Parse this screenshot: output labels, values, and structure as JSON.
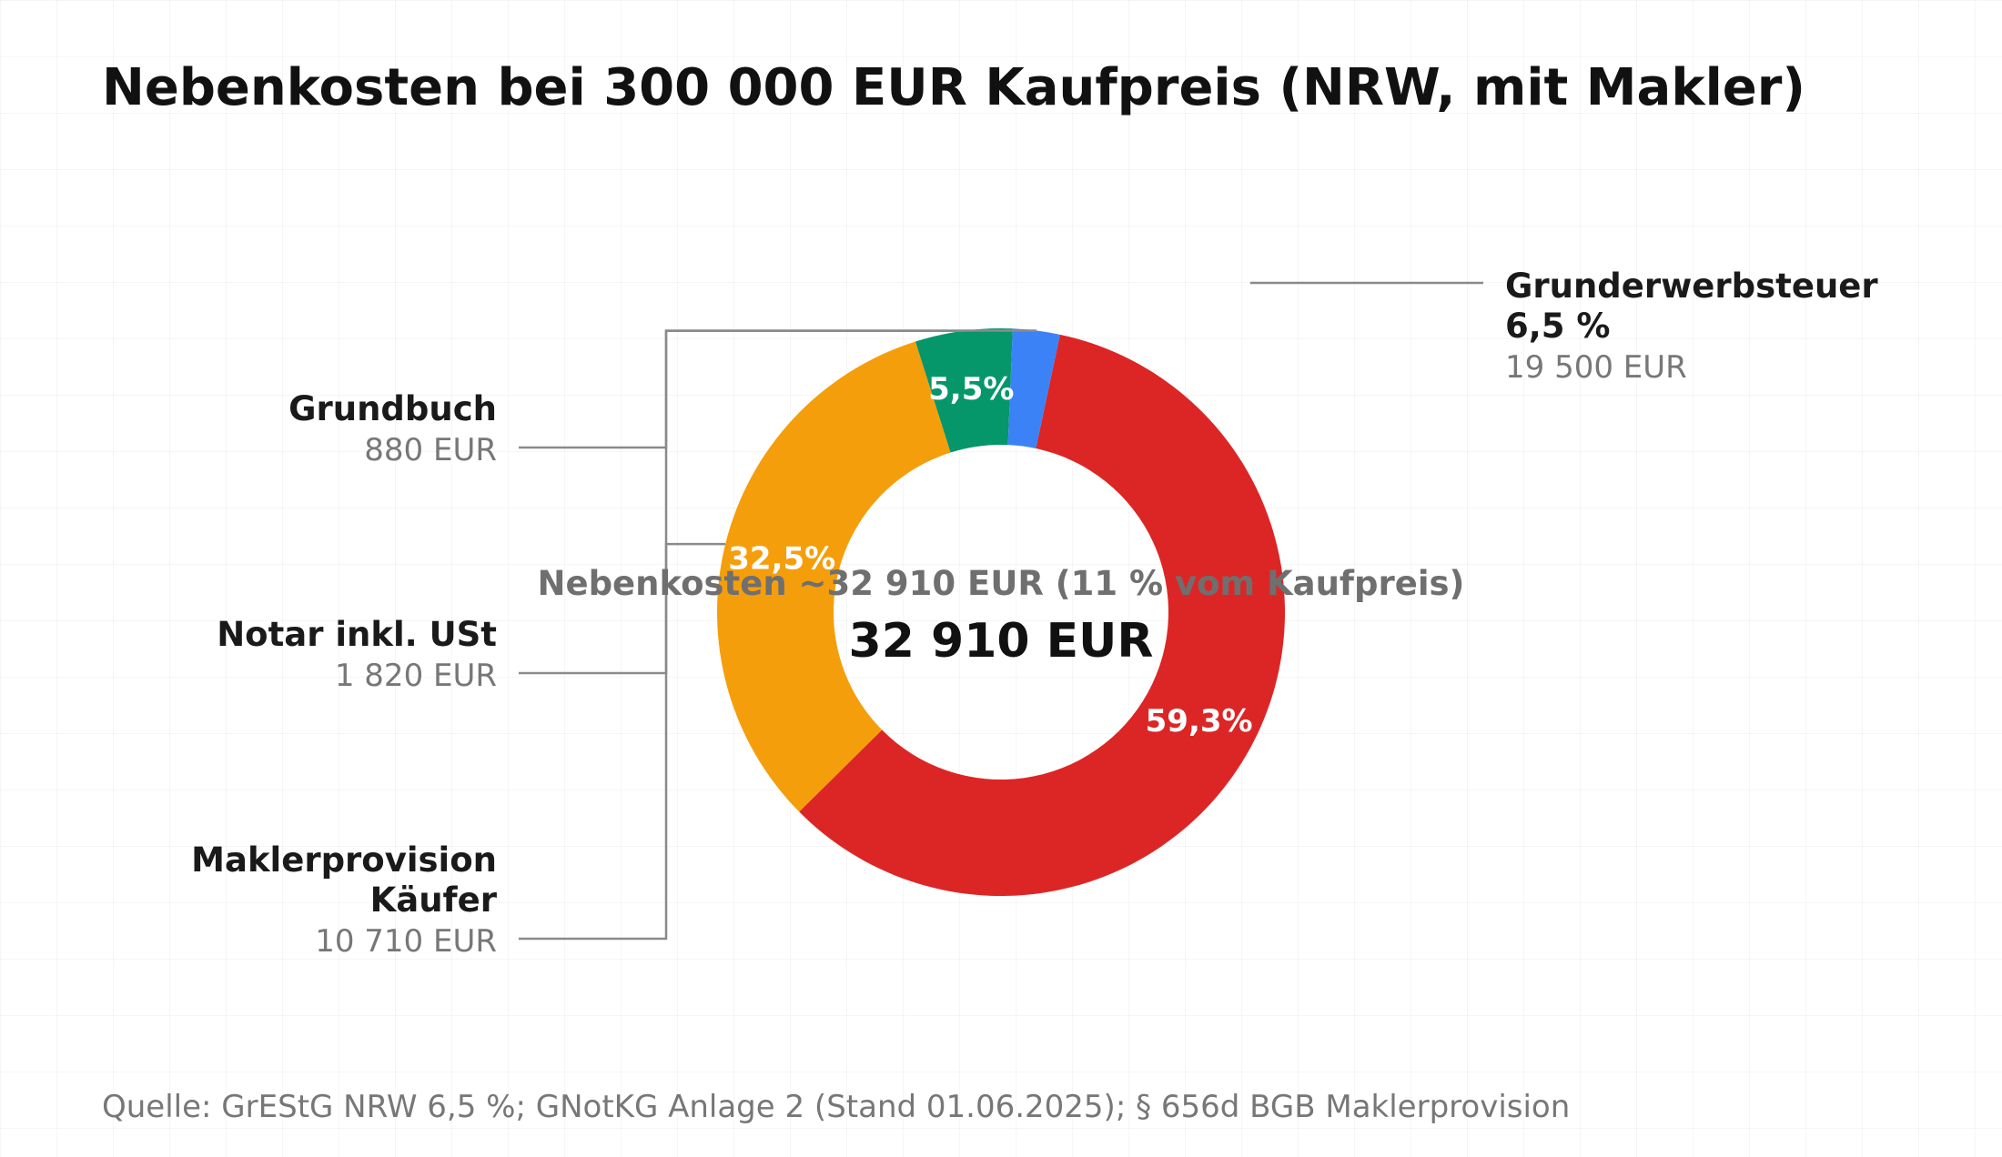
{
  "chart_data": {
    "type": "pie",
    "title": "Nebenkosten bei 300 000 EUR Kaufpreis (NRW, mit Makler)",
    "center_caption": "Nebenkosten ~32 910 EUR (11 % vom Kaufpreis)",
    "center_total": "32 910 EUR",
    "source": "Quelle: GrEStG NRW 6,5 %; GNotKG Anlage 2 (Stand 01.06.2025); § 656d BGB Maklerprovision",
    "slices": [
      {
        "key": "grunderwerbsteuer",
        "label_lines": [
          "Grunderwerbsteuer",
          "6,5 %"
        ],
        "amount_label": "19 500 EUR",
        "value": 19500,
        "percent_label": "59,3%",
        "color": "#dc2626"
      },
      {
        "key": "makler",
        "label_lines": [
          "Maklerprovision",
          "Käufer"
        ],
        "amount_label": "10 710 EUR",
        "value": 10710,
        "percent_label": "32,5%",
        "color": "#f59e0b"
      },
      {
        "key": "notar",
        "label_lines": [
          "Notar inkl. USt"
        ],
        "amount_label": "1 820 EUR",
        "value": 1820,
        "percent_label": "5,5%",
        "color": "#059669"
      },
      {
        "key": "grundbuch",
        "label_lines": [
          "Grundbuch"
        ],
        "amount_label": "880 EUR",
        "value": 880,
        "percent_label": "",
        "color": "#3b82f6"
      }
    ]
  }
}
